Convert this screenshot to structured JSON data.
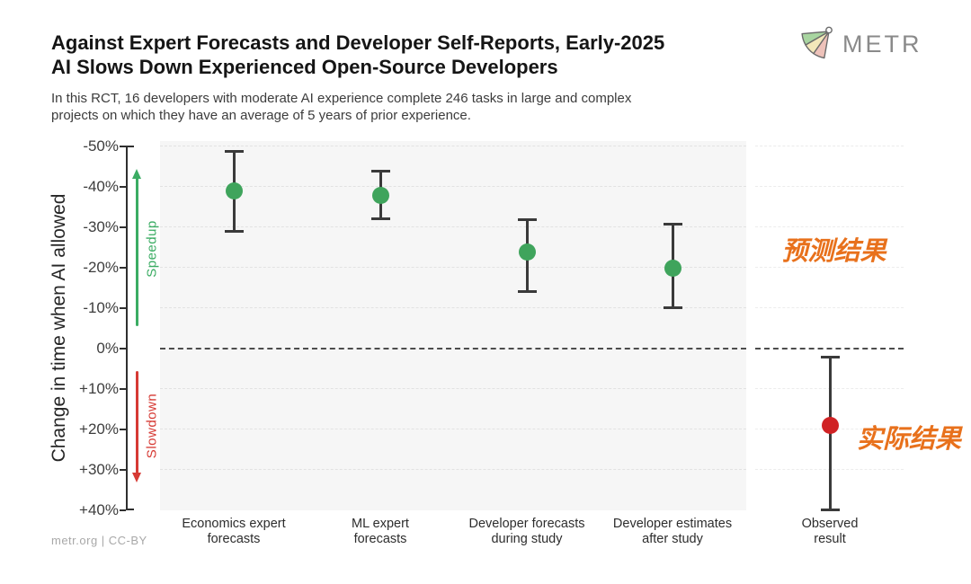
{
  "header": {
    "title_line1": "Against Expert Forecasts and Developer Self-Reports, Early-2025",
    "title_line2": "AI Slows Down Experienced Open-Source Developers",
    "subtitle": "In this RCT, 16 developers with moderate AI experience complete 246 tasks in large and complex projects on which they have an average of 5 years of prior experience.",
    "logo_text": "METR"
  },
  "y_axis": {
    "label": "Change in time when AI allowed",
    "tick_labels": [
      "-50%",
      "-40%",
      "-30%",
      "-20%",
      "-10%",
      "0%",
      "+10%",
      "+20%",
      "+30%",
      "+40%"
    ],
    "speedup_label": "Speedup",
    "slowdown_label": "Slowdown",
    "speedup_color": "#3bac63",
    "slowdown_color": "#d63a34"
  },
  "annotations": {
    "forecast_label": "预测结果",
    "observed_label": "实际结果",
    "color": "#e8711c"
  },
  "footer": {
    "credit": "metr.org  |  CC-BY"
  },
  "chart_data": {
    "type": "scatter",
    "subtype": "point estimates with 95% CI error bars",
    "title": "Against Expert Forecasts and Developer Self-Reports, Early-2025 AI Slows Down Experienced Open-Source Developers",
    "ylabel": "Change in time when AI allowed",
    "y_unit": "percent change in completion time (negative = speedup, positive = slowdown)",
    "y_axis_inverted": true,
    "ylim": [
      -50,
      40
    ],
    "y_ticks": [
      -50,
      -40,
      -30,
      -20,
      -10,
      0,
      10,
      20,
      30,
      40
    ],
    "grid": "horizontal dashed",
    "zero_line": true,
    "legend_position": "none",
    "categories": [
      "Economics expert forecasts",
      "ML expert forecasts",
      "Developer forecasts during study",
      "Developer estimates after study",
      "Observed result"
    ],
    "points": [
      {
        "category": "Economics expert forecasts",
        "label_lines": [
          "Economics expert",
          "forecasts"
        ],
        "mean": -39,
        "ci": [
          -49,
          -29
        ],
        "color": "#3fa45c",
        "panel": "forecasts"
      },
      {
        "category": "ML expert forecasts",
        "label_lines": [
          "ML expert",
          "forecasts"
        ],
        "mean": -38,
        "ci": [
          -44,
          -32
        ],
        "color": "#3fa45c",
        "panel": "forecasts"
      },
      {
        "category": "Developer forecasts during study",
        "label_lines": [
          "Developer forecasts",
          "during study"
        ],
        "mean": -24,
        "ci": [
          -32,
          -14
        ],
        "color": "#3fa45c",
        "panel": "forecasts"
      },
      {
        "category": "Developer estimates after study",
        "label_lines": [
          "Developer estimates",
          "after study"
        ],
        "mean": -20,
        "ci": [
          -31,
          -10
        ],
        "color": "#3fa45c",
        "panel": "forecasts"
      },
      {
        "category": "Observed result",
        "label_lines": [
          "Observed",
          "result"
        ],
        "mean": 19,
        "ci": [
          2,
          40
        ],
        "color": "#d02224",
        "panel": "observed"
      }
    ]
  }
}
